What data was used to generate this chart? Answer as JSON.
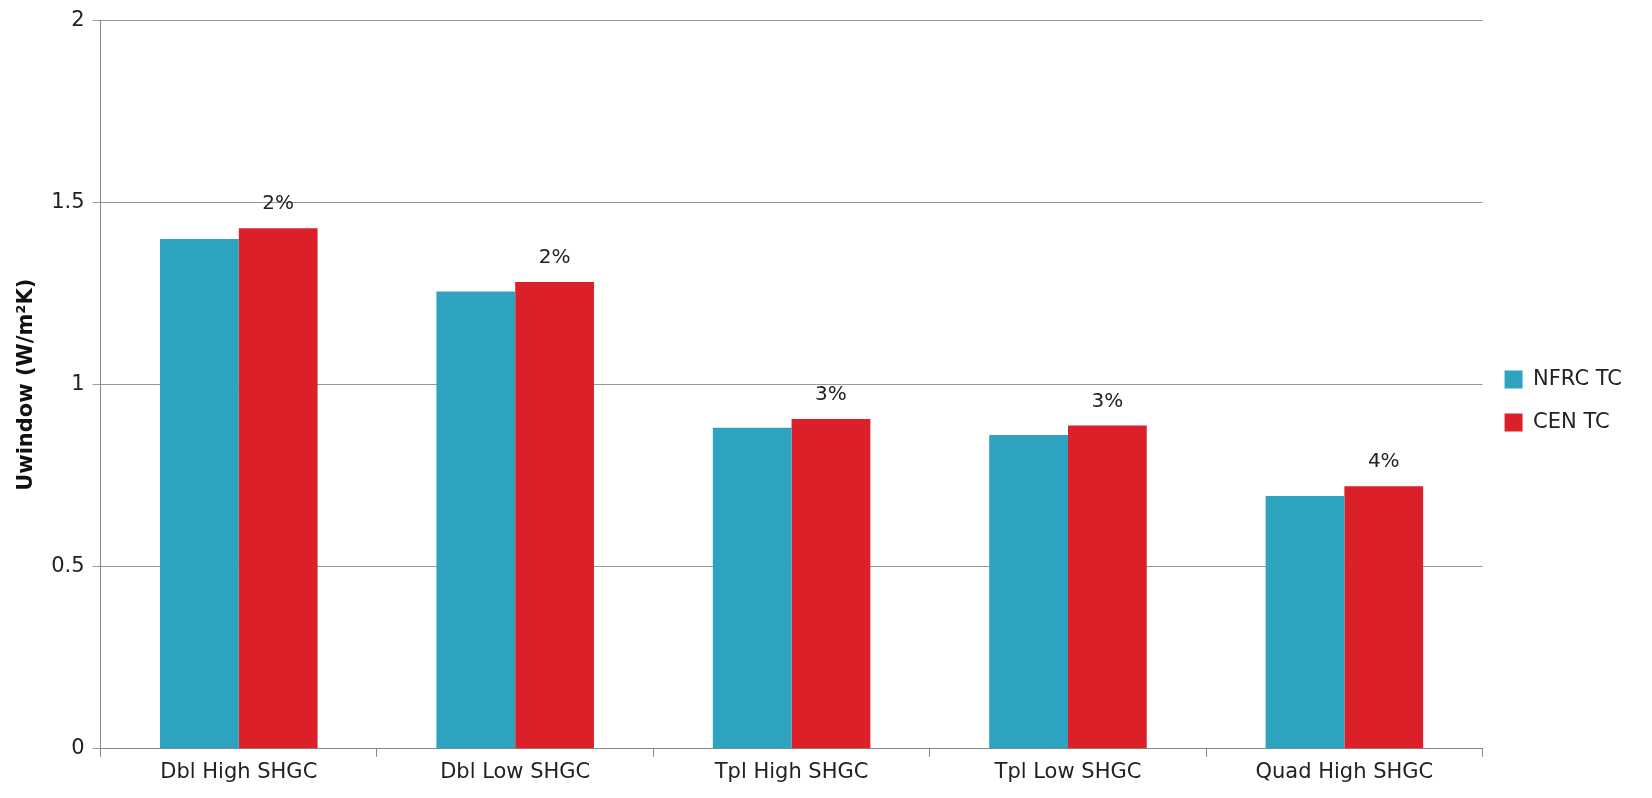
{
  "chart_data": {
    "type": "bar",
    "ylabel": "Uwindow (W/m²K)",
    "categories": [
      "Dbl High SHGC",
      "Dbl Low SHGC",
      "Tpl High SHGC",
      "Tpl Low SHGC",
      "Quad High SHGC"
    ],
    "series": [
      {
        "name": "NFRC TC",
        "color": "#2ea3c0",
        "values": [
          1.4,
          1.256,
          0.882,
          0.862,
          0.694
        ]
      },
      {
        "name": "CEN TC",
        "color": "#db2029",
        "values": [
          1.43,
          1.282,
          0.906,
          0.888,
          0.721
        ]
      }
    ],
    "ylim": [
      0,
      2
    ],
    "yticks": [
      0,
      0.5,
      1,
      1.5,
      2
    ],
    "grid": "y",
    "legend": "right",
    "annotations": [
      {
        "text": "2%",
        "x": "Dbl High SHGC",
        "y": 1.43
      },
      {
        "text": "2%",
        "x": "Dbl Low SHGC",
        "y": 1.282
      },
      {
        "text": "3%",
        "x": "Tpl High SHGC",
        "y": 0.906
      },
      {
        "text": "3%",
        "x": "Tpl Low SHGC",
        "y": 0.888
      },
      {
        "text": "4%",
        "x": "Quad High SHGC",
        "y": 0.721
      }
    ]
  }
}
